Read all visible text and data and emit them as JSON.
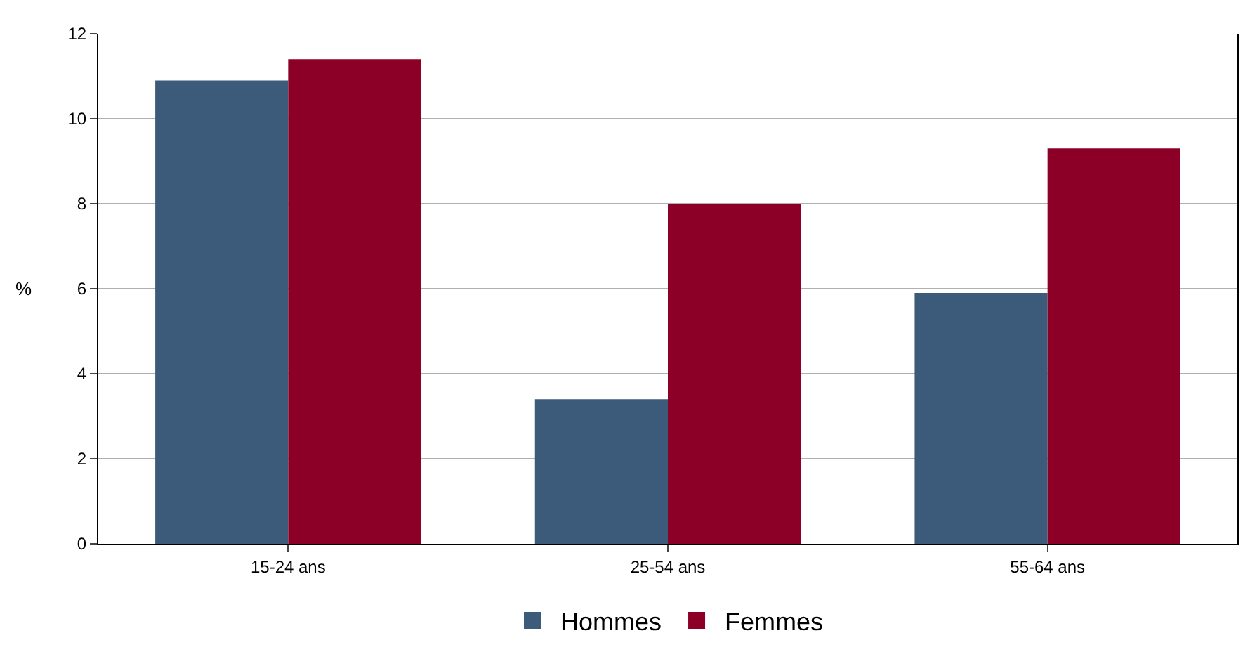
{
  "chart_data": {
    "type": "bar",
    "ylabel": "%",
    "categories": [
      "15-24 ans",
      "25-54 ans",
      "55-64 ans"
    ],
    "series": [
      {
        "name": "Hommes",
        "color": "#3c5a7a",
        "values": [
          10.9,
          3.4,
          5.9
        ]
      },
      {
        "name": "Femmes",
        "color": "#8c0028",
        "values": [
          11.4,
          8.0,
          9.3
        ]
      }
    ],
    "ylim": [
      0,
      12
    ],
    "yticks": [
      0,
      2,
      4,
      6,
      8,
      10,
      12
    ],
    "grid": "y",
    "legend": "bottom"
  }
}
